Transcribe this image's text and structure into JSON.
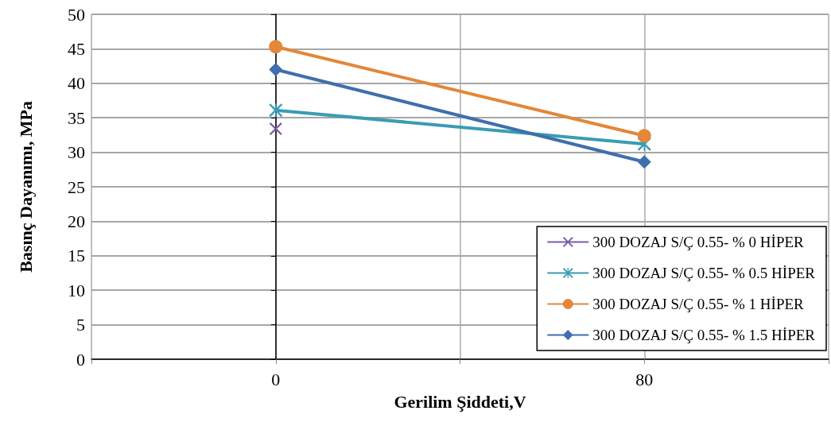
{
  "chart_data": {
    "type": "line",
    "xlabel": "Gerilim Şiddeti,V",
    "ylabel": "Basınç Dayanımı, MPa",
    "x": [
      0,
      80
    ],
    "xlim": [
      -40,
      120
    ],
    "xticks": [
      {
        "value": -40,
        "label": null
      },
      0,
      {
        "value": 40,
        "label": null
      },
      80,
      {
        "value": 120,
        "label": null
      }
    ],
    "series": [
      {
        "name": "300 DOZAJ S/Ç 0.55- % 0 HİPER",
        "color": "#7b5ea3",
        "marker": "cross",
        "values": [
          33.4,
          null
        ]
      },
      {
        "name": "300 DOZAJ S/Ç 0.55- % 0.5 HİPER",
        "color": "#3a9cb2",
        "marker": "star",
        "values": [
          36.1,
          31.2
        ]
      },
      {
        "name": "300 DOZAJ S/Ç 0.55- % 1 HİPER",
        "color": "#e3873a",
        "marker": "circle",
        "values": [
          45.3,
          32.4
        ]
      },
      {
        "name": "300 DOZAJ S/Ç 0.55- % 1.5 HİPER",
        "color": "#3f6fad",
        "marker": "diamond",
        "values": [
          42.0,
          28.6
        ]
      }
    ],
    "ylim": [
      0,
      50
    ],
    "yticks": [
      0,
      5,
      10,
      15,
      20,
      25,
      30,
      35,
      40,
      45,
      50
    ],
    "grid": true,
    "legend": "bottom right"
  }
}
